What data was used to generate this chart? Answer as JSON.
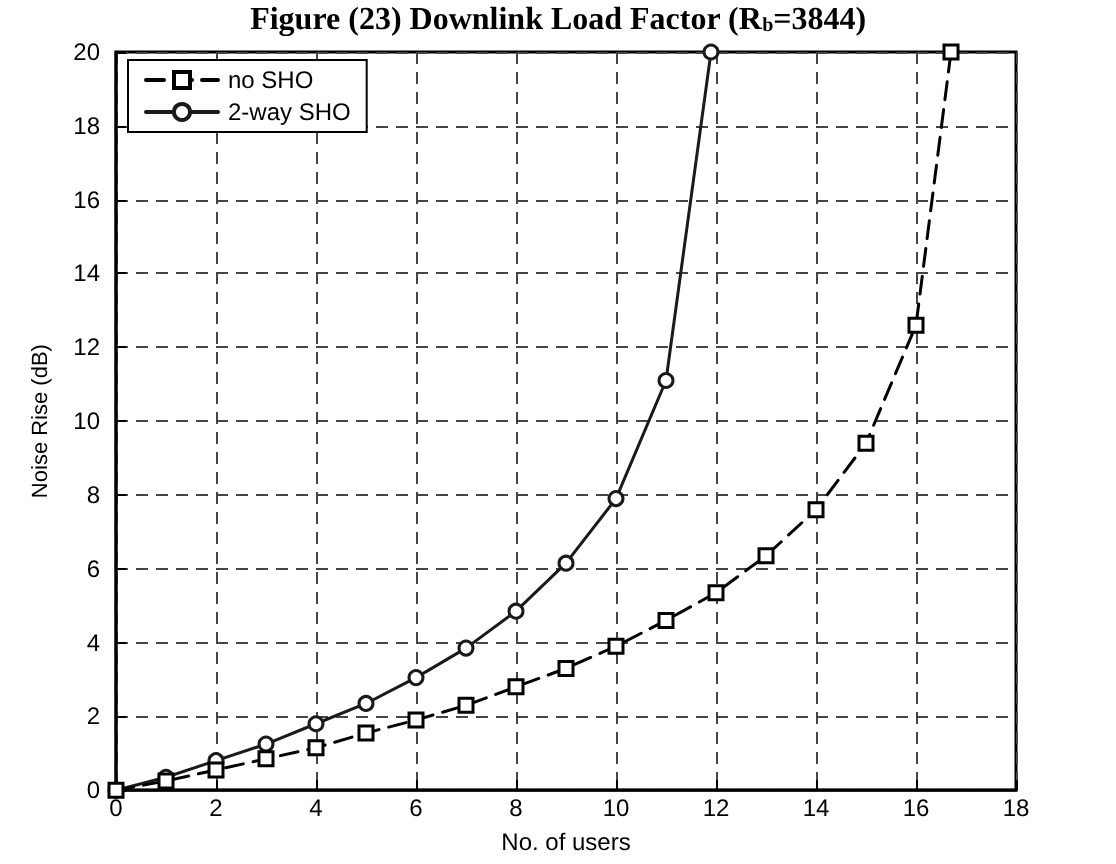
{
  "chart_data": {
    "type": "line",
    "title": "Figure (23) Downlink Load Factor (R$_{b}$=3844)",
    "xlabel": "No. of users",
    "ylabel": "Noise Rise (dB)",
    "xlim": [
      0,
      18
    ],
    "xticks": [
      0,
      2,
      4,
      6,
      8,
      10,
      12,
      14,
      16,
      18
    ],
    "ylim": [
      0,
      20
    ],
    "yticks": [
      0,
      2,
      4,
      6,
      8,
      10,
      12,
      14,
      16,
      18,
      20
    ],
    "grid": true,
    "legend": "top left",
    "series": [
      {
        "name": "no SHO",
        "color": "#000000",
        "marker": "square",
        "line_style": "dashed",
        "x": [
          0,
          1,
          2,
          3,
          4,
          5,
          6,
          7,
          8,
          9,
          10,
          11,
          12,
          13,
          14,
          15,
          16,
          16.7
        ],
        "values": [
          0,
          0.25,
          0.55,
          0.85,
          1.15,
          1.55,
          1.9,
          2.3,
          2.8,
          3.3,
          3.9,
          4.6,
          5.35,
          6.35,
          7.6,
          9.4,
          12.6,
          20
        ]
      },
      {
        "name": "2-way SHO",
        "color": "#1a1a1a",
        "marker": "circle",
        "line_style": "solid",
        "x": [
          0,
          1,
          2,
          3,
          4,
          5,
          6,
          7,
          8,
          9,
          10,
          11,
          11.9
        ],
        "values": [
          0,
          0.35,
          0.8,
          1.25,
          1.8,
          2.35,
          3.05,
          3.85,
          4.85,
          6.15,
          7.9,
          11.1,
          20
        ]
      }
    ]
  }
}
